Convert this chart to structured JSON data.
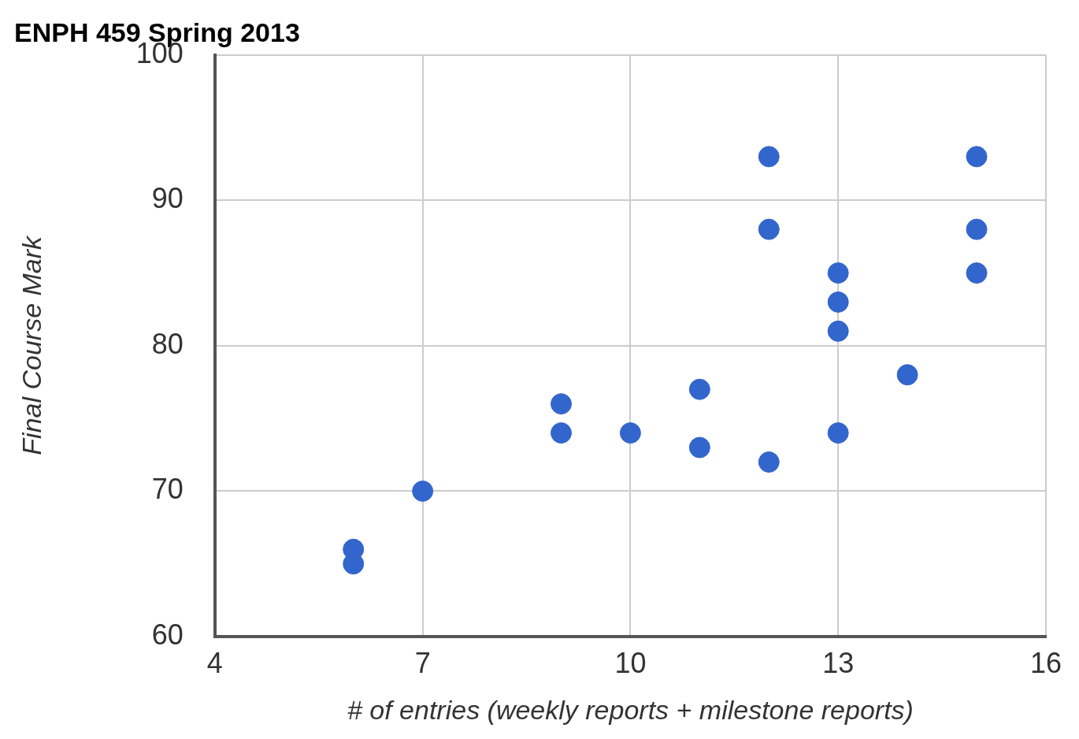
{
  "chart_data": {
    "type": "scatter",
    "title": "ENPH 459 Spring 2013",
    "xlabel": "# of entries (weekly reports + milestone reports)",
    "ylabel": "Final Course Mark",
    "x": [
      6,
      6,
      7,
      9,
      9,
      10,
      11,
      11,
      12,
      12,
      12,
      13,
      13,
      13,
      13,
      14,
      15,
      15,
      15
    ],
    "series": [
      {
        "color": "#3366cc",
        "values": [
          66,
          65,
          70,
          76,
          74,
          74,
          77,
          73,
          93,
          88,
          72,
          85,
          83,
          81,
          74,
          78,
          93,
          88,
          85
        ]
      }
    ],
    "xlim": [
      4,
      16
    ],
    "xticks": [
      4,
      7,
      10,
      13,
      16
    ],
    "ylim": [
      60,
      100
    ],
    "yticks": [
      60,
      70,
      80,
      90,
      100
    ],
    "grid": true,
    "legend": false,
    "marker": "circle"
  }
}
